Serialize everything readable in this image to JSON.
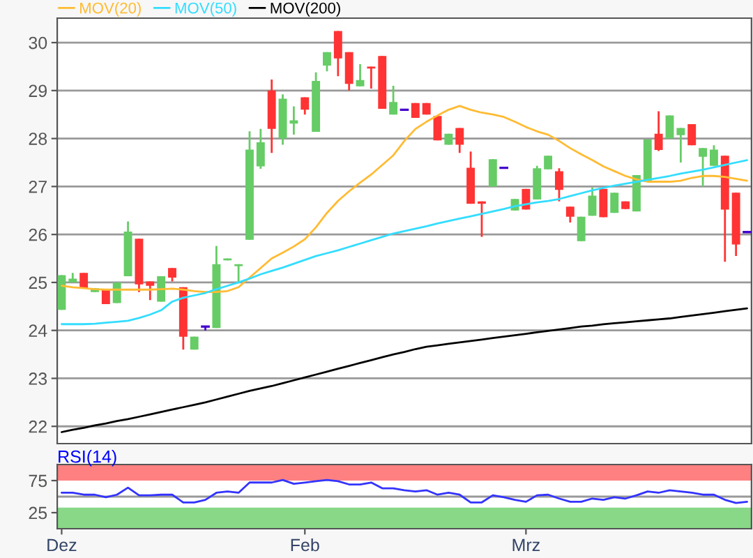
{
  "chart_data": [
    {
      "type": "candlestick",
      "categories": [
        null,
        null,
        null,
        null,
        null,
        null,
        null,
        null,
        null,
        null,
        null,
        null,
        null,
        null,
        null,
        null,
        null,
        null,
        null,
        null,
        null,
        null,
        null,
        null,
        null,
        null,
        null,
        null,
        null,
        null,
        null,
        null,
        null,
        null,
        null,
        null,
        null,
        null,
        null,
        null,
        null,
        null,
        null,
        null,
        null,
        null,
        null,
        null,
        null,
        null,
        null,
        null,
        null,
        null,
        null,
        null,
        null,
        null,
        null,
        null,
        null,
        null,
        null
      ],
      "ohlc": [
        [
          24.43,
          25.15,
          24.43,
          25.15
        ],
        [
          25.0,
          25.2,
          25.0,
          25.08
        ],
        [
          25.2,
          25.2,
          24.87,
          24.87
        ],
        [
          24.8,
          24.88,
          24.8,
          24.88
        ],
        [
          24.84,
          24.84,
          24.55,
          24.55
        ],
        [
          24.57,
          25.0,
          24.57,
          25.0
        ],
        [
          25.13,
          26.27,
          25.13,
          26.06
        ],
        [
          25.91,
          25.91,
          24.8,
          24.96
        ],
        [
          25.02,
          25.02,
          24.63,
          24.93
        ],
        [
          24.6,
          25.13,
          24.6,
          25.13
        ],
        [
          25.3,
          25.3,
          25.02,
          25.1
        ],
        [
          24.9,
          24.9,
          23.6,
          23.87
        ],
        [
          23.6,
          23.87,
          23.6,
          23.87
        ],
        [
          24.08,
          24.08,
          24.0,
          24.08
        ],
        [
          24.05,
          25.76,
          24.05,
          25.38
        ],
        [
          25.46,
          25.5,
          25.46,
          25.5
        ],
        [
          25.34,
          25.38,
          25.0,
          25.38
        ],
        [
          25.89,
          28.15,
          25.89,
          27.77
        ],
        [
          27.42,
          28.2,
          27.37,
          27.92
        ],
        [
          29.0,
          29.23,
          27.7,
          28.2
        ],
        [
          28.0,
          28.92,
          27.87,
          28.83
        ],
        [
          28.31,
          28.67,
          28.08,
          28.38
        ],
        [
          28.86,
          28.86,
          28.5,
          28.6
        ],
        [
          28.14,
          29.38,
          28.14,
          29.2
        ],
        [
          29.52,
          29.8,
          29.4,
          29.8
        ],
        [
          30.24,
          30.24,
          29.3,
          29.67
        ],
        [
          29.8,
          29.8,
          29.0,
          29.14
        ],
        [
          29.09,
          29.55,
          29.09,
          29.22
        ],
        [
          29.5,
          29.5,
          29.04,
          29.46
        ],
        [
          29.72,
          29.72,
          28.62,
          28.62
        ],
        [
          28.5,
          29.1,
          28.5,
          28.76
        ],
        [
          28.6,
          28.6,
          28.6,
          28.6
        ],
        [
          28.74,
          28.74,
          28.43,
          28.43
        ],
        [
          28.74,
          28.74,
          28.5,
          28.5
        ],
        [
          28.47,
          28.47,
          27.96,
          27.96
        ],
        [
          27.87,
          28.1,
          27.87,
          28.1
        ],
        [
          28.22,
          28.22,
          27.7,
          27.87
        ],
        [
          27.39,
          27.73,
          26.64,
          26.64
        ],
        [
          26.69,
          26.69,
          25.95,
          26.64
        ],
        [
          27.0,
          27.57,
          27.0,
          27.57
        ],
        [
          27.39,
          27.39,
          27.39,
          27.39
        ],
        [
          26.5,
          26.74,
          26.5,
          26.74
        ],
        [
          26.95,
          26.95,
          26.52,
          26.52
        ],
        [
          26.73,
          27.43,
          26.73,
          27.38
        ],
        [
          27.36,
          27.64,
          27.36,
          27.64
        ],
        [
          27.32,
          27.38,
          26.69,
          26.93
        ],
        [
          26.58,
          26.58,
          26.25,
          26.37
        ],
        [
          25.86,
          26.37,
          25.86,
          26.37
        ],
        [
          26.39,
          26.98,
          26.39,
          26.81
        ],
        [
          26.95,
          26.95,
          26.36,
          26.36
        ],
        [
          26.45,
          26.87,
          26.45,
          26.87
        ],
        [
          26.69,
          26.69,
          26.53,
          26.53
        ],
        [
          26.48,
          27.24,
          26.48,
          27.24
        ],
        [
          27.12,
          27.98,
          27.12,
          27.98
        ],
        [
          28.1,
          28.57,
          27.74,
          27.76
        ],
        [
          28.0,
          28.48,
          28.0,
          28.48
        ],
        [
          28.07,
          28.22,
          27.5,
          28.22
        ],
        [
          28.3,
          28.3,
          27.86,
          27.86
        ],
        [
          27.62,
          27.8,
          27.0,
          27.8
        ],
        [
          27.43,
          27.86,
          27.43,
          27.77
        ],
        [
          27.64,
          27.64,
          25.43,
          26.52
        ],
        [
          26.87,
          26.87,
          25.55,
          25.79
        ],
        [
          26.05,
          26.05,
          26.05,
          26.05
        ]
      ],
      "colors": [
        "#66cc66",
        "#66cc66",
        "#ff3333",
        "#66cc66",
        "#ff3333",
        "#66cc66",
        "#66cc66",
        "#ff3333",
        "#ff3333",
        "#66cc66",
        "#ff3333",
        "#ff3333",
        "#66cc66",
        "#4400cc",
        "#66cc66",
        "#66cc66",
        "#66cc66",
        "#66cc66",
        "#66cc66",
        "#ff3333",
        "#66cc66",
        "#66cc66",
        "#ff3333",
        "#66cc66",
        "#66cc66",
        "#ff3333",
        "#ff3333",
        "#66cc66",
        "#ff3333",
        "#ff3333",
        "#66cc66",
        "#4400cc",
        "#ff3333",
        "#ff3333",
        "#ff3333",
        "#66cc66",
        "#ff3333",
        "#ff3333",
        "#ff3333",
        "#66cc66",
        "#4400cc",
        "#66cc66",
        "#ff3333",
        "#66cc66",
        "#66cc66",
        "#ff3333",
        "#ff3333",
        "#66cc66",
        "#66cc66",
        "#ff3333",
        "#66cc66",
        "#ff3333",
        "#66cc66",
        "#66cc66",
        "#ff3333",
        "#66cc66",
        "#66cc66",
        "#ff3333",
        "#66cc66",
        "#66cc66",
        "#ff3333",
        "#ff3333",
        "#4400cc"
      ],
      "series": [
        {
          "type": "line",
          "name": "MOV(20)",
          "color": "#ffbb33",
          "values": [
            24.93,
            24.9,
            24.88,
            24.86,
            24.85,
            24.85,
            24.85,
            24.85,
            24.85,
            24.86,
            24.87,
            24.85,
            24.82,
            24.8,
            24.8,
            24.82,
            24.9,
            25.1,
            25.3,
            25.5,
            25.62,
            25.75,
            25.9,
            26.15,
            26.45,
            26.7,
            26.9,
            27.08,
            27.25,
            27.45,
            27.65,
            27.95,
            28.2,
            28.35,
            28.48,
            28.6,
            28.68,
            28.6,
            28.54,
            28.5,
            28.45,
            28.35,
            28.24,
            28.15,
            28.08,
            27.95,
            27.8,
            27.67,
            27.55,
            27.42,
            27.32,
            27.22,
            27.15,
            27.1,
            27.1,
            27.1,
            27.12,
            27.18,
            27.22,
            27.22,
            27.2,
            27.16,
            27.12
          ]
        },
        {
          "type": "line",
          "name": "MOV(50)",
          "color": "#33ddff",
          "values": [
            24.13,
            24.13,
            24.13,
            24.14,
            24.16,
            24.18,
            24.2,
            24.26,
            24.33,
            24.42,
            24.6,
            24.68,
            24.73,
            24.78,
            24.86,
            24.93,
            25.0,
            25.08,
            25.17,
            25.24,
            25.31,
            25.39,
            25.47,
            25.55,
            25.61,
            25.67,
            25.74,
            25.81,
            25.88,
            25.95,
            26.02,
            26.07,
            26.12,
            26.17,
            26.23,
            26.28,
            26.33,
            26.38,
            26.43,
            26.48,
            26.53,
            26.59,
            26.63,
            26.67,
            26.7,
            26.74,
            26.8,
            26.86,
            26.92,
            26.97,
            27.02,
            27.06,
            27.1,
            27.14,
            27.18,
            27.22,
            27.27,
            27.31,
            27.35,
            27.4,
            27.45,
            27.5,
            27.55
          ]
        },
        {
          "type": "line",
          "name": "MOV(200)",
          "color": "#000000",
          "values": [
            21.88,
            21.93,
            21.97,
            22.02,
            22.06,
            22.11,
            22.15,
            22.2,
            22.25,
            22.3,
            22.35,
            22.4,
            22.45,
            22.5,
            22.56,
            22.62,
            22.68,
            22.74,
            22.79,
            22.84,
            22.9,
            22.96,
            23.02,
            23.08,
            23.14,
            23.2,
            23.26,
            23.32,
            23.38,
            23.44,
            23.5,
            23.55,
            23.61,
            23.66,
            23.69,
            23.72,
            23.75,
            23.78,
            23.81,
            23.84,
            23.87,
            23.9,
            23.93,
            23.96,
            23.99,
            24.02,
            24.05,
            24.08,
            24.1,
            24.13,
            24.15,
            24.17,
            24.19,
            24.21,
            24.23,
            24.25,
            24.28,
            24.31,
            24.34,
            24.37,
            24.4,
            24.43,
            24.46
          ]
        }
      ],
      "ylim": [
        21.64,
        30.51
      ],
      "yticks": [
        22,
        23,
        24,
        25,
        26,
        27,
        28,
        29,
        30
      ],
      "grid": "y",
      "legend": "top left",
      "tick_labels": "y"
    },
    {
      "type": "line",
      "title": "RSI(14)",
      "categories": [
        "Dez",
        null,
        null,
        null,
        null,
        null,
        null,
        null,
        null,
        null,
        null,
        null,
        null,
        null,
        null,
        null,
        null,
        null,
        null,
        null,
        null,
        null,
        "Feb",
        null,
        null,
        null,
        null,
        null,
        null,
        null,
        null,
        null,
        null,
        null,
        null,
        null,
        null,
        null,
        null,
        null,
        null,
        null,
        "Mrz",
        null,
        null,
        null,
        null,
        null,
        null,
        null,
        null,
        null,
        null,
        null,
        null,
        null,
        null,
        null,
        null,
        null,
        null,
        null,
        null
      ],
      "series": [
        {
          "color": "#3333ff",
          "values": [
            56,
            56,
            53,
            53,
            49,
            53,
            64,
            52,
            52,
            53,
            53,
            41,
            41,
            45,
            56,
            58,
            56,
            72,
            72,
            72,
            76,
            70,
            72,
            74,
            76,
            74,
            69,
            69,
            72,
            63,
            63,
            60,
            58,
            60,
            53,
            56,
            53,
            41,
            41,
            52,
            49,
            45,
            42,
            52,
            53,
            47,
            42,
            42,
            47,
            45,
            49,
            47,
            52,
            58,
            56,
            60,
            58,
            56,
            53,
            53,
            45,
            40,
            42
          ]
        }
      ],
      "ylim": [
        0,
        100
      ],
      "yticks": [
        25,
        75
      ],
      "bands": [
        {
          "axis": "y",
          "from": 75,
          "to": 100,
          "color": "#ff8080"
        },
        {
          "axis": "y",
          "from": 0,
          "to": 33,
          "color": "#88d888"
        }
      ],
      "ref_lines": [
        {
          "axis": "y",
          "value": 50,
          "color": "#999999"
        }
      ]
    }
  ]
}
